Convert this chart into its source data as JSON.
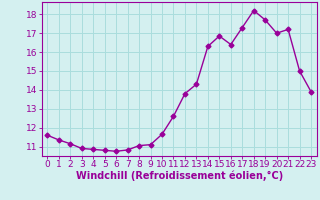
{
  "x": [
    0,
    1,
    2,
    3,
    4,
    5,
    6,
    7,
    8,
    9,
    10,
    11,
    12,
    13,
    14,
    15,
    16,
    17,
    18,
    19,
    20,
    21,
    22,
    23
  ],
  "y": [
    11.6,
    11.35,
    11.15,
    10.9,
    10.85,
    10.8,
    10.75,
    10.82,
    11.05,
    11.1,
    11.65,
    12.6,
    13.8,
    14.3,
    16.3,
    16.85,
    16.4,
    17.3,
    18.2,
    17.7,
    17.0,
    17.2,
    15.0,
    13.9
  ],
  "line_color": "#990099",
  "marker": "D",
  "marker_size": 2.5,
  "linewidth": 1.0,
  "bg_color": "#d4f0f0",
  "grid_color": "#aadddd",
  "xlabel": "Windchill (Refroidissement éolien,°C)",
  "xlabel_color": "#990099",
  "xlabel_fontsize": 7,
  "ylabel_ticks": [
    11,
    12,
    13,
    14,
    15,
    16,
    17,
    18
  ],
  "xlim": [
    -0.5,
    23.5
  ],
  "ylim": [
    10.5,
    18.65
  ],
  "tick_color": "#990099",
  "tick_fontsize": 6.5,
  "axis_color": "#990099"
}
